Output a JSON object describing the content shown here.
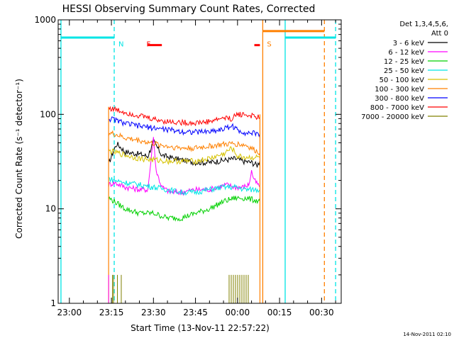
{
  "chart_data": {
    "type": "line",
    "title": "HESSI Observing Summary Count Rates, Corrected",
    "xlabel": "Start Time (13-Nov-11 22:57:22)",
    "ylabel": "Corrected Count Rate (s⁻¹ detector⁻¹)",
    "y_scale": "log",
    "ylim": [
      1,
      1000
    ],
    "xlim": [
      "22:56",
      "00:37"
    ],
    "x_ticks": [
      {
        "t": "23:00",
        "label": "23:00"
      },
      {
        "t": "23:15",
        "label": "23:15"
      },
      {
        "t": "23:30",
        "label": "23:30"
      },
      {
        "t": "23:45",
        "label": "23:45"
      },
      {
        "t": "00:00",
        "label": "00:00"
      },
      {
        "t": "00:15",
        "label": "00:15"
      },
      {
        "t": "00:30",
        "label": "00:30"
      }
    ],
    "y_ticks": [
      {
        "v": 1,
        "label": "1"
      },
      {
        "v": 10,
        "label": "10"
      },
      {
        "v": 100,
        "label": "100"
      },
      {
        "v": 1000,
        "label": "1000"
      }
    ],
    "legend_title": [
      "Det 1,3,4,5,6,",
      "Att 0"
    ],
    "legend_position": "top-right",
    "series": [
      {
        "name": "3 - 6 keV",
        "color": "#000000",
        "points": [
          [
            "23:14",
            30
          ],
          [
            "23:16",
            43
          ],
          [
            "23:17",
            49
          ],
          [
            "23:20",
            40
          ],
          [
            "23:25",
            38
          ],
          [
            "23:28",
            36
          ],
          [
            "23:30",
            52
          ],
          [
            "23:33",
            37
          ],
          [
            "23:36",
            35
          ],
          [
            "23:40",
            33
          ],
          [
            "23:45",
            31
          ],
          [
            "23:50",
            31
          ],
          [
            "23:56",
            33
          ],
          [
            "23:59",
            34
          ],
          [
            "00:02",
            32
          ],
          [
            "00:05",
            31
          ],
          [
            "00:07",
            29
          ],
          [
            "00:08",
            32
          ]
        ]
      },
      {
        "name": "6 - 12 keV",
        "color": "#ff00ff",
        "points": [
          [
            "23:14",
            18
          ],
          [
            "23:16",
            19
          ],
          [
            "23:20",
            17
          ],
          [
            "23:25",
            16
          ],
          [
            "23:28",
            16
          ],
          [
            "23:30",
            57
          ],
          [
            "23:31",
            25
          ],
          [
            "23:33",
            17
          ],
          [
            "23:36",
            15
          ],
          [
            "23:40",
            15
          ],
          [
            "23:45",
            16
          ],
          [
            "23:50",
            16
          ],
          [
            "23:56",
            18
          ],
          [
            "23:59",
            17
          ],
          [
            "00:02",
            17
          ],
          [
            "00:04",
            18
          ],
          [
            "00:05",
            25
          ],
          [
            "00:06",
            20
          ],
          [
            "00:08",
            17
          ]
        ]
      },
      {
        "name": "12 - 25 keV",
        "color": "#00d000",
        "points": [
          [
            "23:14",
            13
          ],
          [
            "23:16",
            12
          ],
          [
            "23:20",
            10
          ],
          [
            "23:25",
            9
          ],
          [
            "23:30",
            9
          ],
          [
            "23:35",
            8
          ],
          [
            "23:40",
            8
          ],
          [
            "23:45",
            9
          ],
          [
            "23:50",
            10
          ],
          [
            "23:55",
            12
          ],
          [
            "23:59",
            13
          ],
          [
            "00:03",
            13
          ],
          [
            "00:08",
            12
          ]
        ]
      },
      {
        "name": "25 - 50 keV",
        "color": "#00e5e5",
        "points": [
          [
            "23:14",
            21
          ],
          [
            "23:16",
            20
          ],
          [
            "23:20",
            19
          ],
          [
            "23:25",
            18
          ],
          [
            "23:30",
            17
          ],
          [
            "23:35",
            16
          ],
          [
            "23:40",
            15
          ],
          [
            "23:45",
            15
          ],
          [
            "23:50",
            16
          ],
          [
            "23:55",
            17
          ],
          [
            "23:59",
            17
          ],
          [
            "00:03",
            16
          ],
          [
            "00:08",
            16
          ]
        ]
      },
      {
        "name": "50 - 100 keV",
        "color": "#d6c200",
        "points": [
          [
            "23:14",
            41
          ],
          [
            "23:16",
            40
          ],
          [
            "23:20",
            37
          ],
          [
            "23:25",
            34
          ],
          [
            "23:30",
            33
          ],
          [
            "23:35",
            32
          ],
          [
            "23:40",
            32
          ],
          [
            "23:45",
            32
          ],
          [
            "23:50",
            34
          ],
          [
            "23:55",
            38
          ],
          [
            "23:58",
            44
          ],
          [
            "00:00",
            36
          ],
          [
            "00:03",
            35
          ],
          [
            "00:08",
            35
          ]
        ]
      },
      {
        "name": "100 - 300 keV",
        "color": "#ff8000",
        "points": [
          [
            "23:14",
            63
          ],
          [
            "23:16",
            62
          ],
          [
            "23:20",
            56
          ],
          [
            "23:25",
            53
          ],
          [
            "23:30",
            49
          ],
          [
            "23:35",
            46
          ],
          [
            "23:40",
            44
          ],
          [
            "23:45",
            44
          ],
          [
            "23:50",
            46
          ],
          [
            "23:55",
            48
          ],
          [
            "23:59",
            49
          ],
          [
            "00:03",
            47
          ],
          [
            "00:08",
            39
          ]
        ]
      },
      {
        "name": "300 - 800 keV",
        "color": "#0000ff",
        "points": [
          [
            "23:14",
            90
          ],
          [
            "23:16",
            88
          ],
          [
            "23:20",
            80
          ],
          [
            "23:25",
            75
          ],
          [
            "23:30",
            72
          ],
          [
            "23:35",
            69
          ],
          [
            "23:40",
            66
          ],
          [
            "23:45",
            65
          ],
          [
            "23:50",
            66
          ],
          [
            "23:55",
            70
          ],
          [
            "23:58",
            76
          ],
          [
            "00:00",
            68
          ],
          [
            "00:03",
            64
          ],
          [
            "00:08",
            62
          ]
        ]
      },
      {
        "name": "800 - 7000 keV",
        "color": "#ff0000",
        "points": [
          [
            "23:14",
            117
          ],
          [
            "23:16",
            113
          ],
          [
            "23:20",
            105
          ],
          [
            "23:25",
            97
          ],
          [
            "23:30",
            89
          ],
          [
            "23:35",
            84
          ],
          [
            "23:40",
            82
          ],
          [
            "23:45",
            81
          ],
          [
            "23:50",
            84
          ],
          [
            "23:55",
            92
          ],
          [
            "23:58",
            90
          ],
          [
            "00:00",
            101
          ],
          [
            "00:03",
            99
          ],
          [
            "00:08",
            92
          ]
        ]
      },
      {
        "name": "7000 - 20000 keV",
        "color": "#808000",
        "points": []
      }
    ],
    "annotations": [
      {
        "label": "N",
        "color": "#00e5e5",
        "t": "23:16"
      },
      {
        "label": "F",
        "color": "#ff0000",
        "t": "23:26"
      },
      {
        "label": "S",
        "color": "#ff8000",
        "t": "00:09"
      }
    ],
    "state_bars": [
      {
        "type": "cyan-level",
        "color": "#00e5e5",
        "start": "22:57",
        "end": "23:16",
        "value": 650
      },
      {
        "type": "flare",
        "color": "#ff0000",
        "start": "23:28",
        "end": "23:33",
        "value": 540
      },
      {
        "type": "flare",
        "color": "#ff0000",
        "start": "00:06",
        "end": "00:08",
        "value": 540
      },
      {
        "type": "saa",
        "color": "#ff8000",
        "start": "00:09",
        "end": "00:31",
        "value": 760
      },
      {
        "type": "cyan-level",
        "color": "#00e5e5",
        "start": "00:17",
        "end": "00:35",
        "value": 650
      }
    ],
    "vertical_markers": [
      {
        "t": "22:57",
        "color": "#00e5e5",
        "style": "solid"
      },
      {
        "t": "23:16",
        "color": "#00e5e5",
        "style": "dashed"
      },
      {
        "t": "00:09",
        "color": "#ff8000",
        "style": "solid"
      },
      {
        "t": "00:17",
        "color": "#00e5e5",
        "style": "solid"
      },
      {
        "t": "00:31",
        "color": "#ff8000",
        "style": "dashed"
      },
      {
        "t": "00:35",
        "color": "#00e5e5",
        "style": "dashed"
      }
    ],
    "timestamp": "14-Nov-2011 02:10"
  }
}
